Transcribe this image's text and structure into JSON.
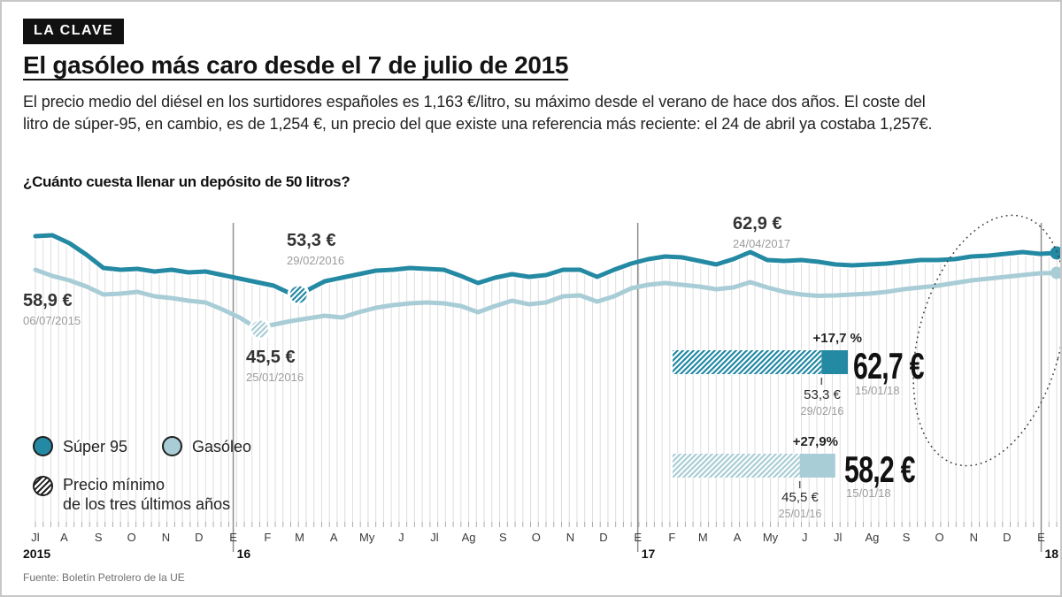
{
  "badge": "LA CLAVE",
  "title": "El gasóleo más caro desde el 7 de julio de 2015",
  "intro_lines": [
    "El precio medio del diésel en los surtidores españoles es 1,163 €/litro, su máximo desde el verano de hace dos años. El coste del",
    "litro de súper-95, en cambio, es de 1,254 €, un precio del que existe una referencia más reciente: el 24 de abril ya costaba 1,257€."
  ],
  "question": "¿Cuánto cuesta llenar un depósito de 50 litros?",
  "source": "Fuente: Boletín Petrolero de la UE",
  "legend": {
    "super95": "Súper 95",
    "gasoleo": "Gasóleo",
    "min_line1": "Precio mínimo",
    "min_line2": "de los tres últimos años"
  },
  "colors": {
    "super95": "#2489a3",
    "gasoleo": "#a9cdd6",
    "grid": "#dedede",
    "tick": "#ababab",
    "year_line": "#8f8f8f",
    "ink": "#1f1f1f",
    "date_gray": "#9c9c9c"
  },
  "chart_data": {
    "type": "line",
    "title": "¿Cuánto cuesta llenar un depósito de 50 litros?",
    "unit": "€ por depósito de 50 litros",
    "x_range": [
      "06/07/2015",
      "15/01/2018"
    ],
    "ylim": [
      44,
      68
    ],
    "grid": "weekly vertical drop lines",
    "legend_position": "bottom-left",
    "x_months": [
      "Jl",
      "A",
      "S",
      "O",
      "N",
      "D",
      "E",
      "F",
      "M",
      "A",
      "My",
      "J",
      "Jl",
      "Ag",
      "S",
      "O",
      "N",
      "D",
      "E",
      "F",
      "M",
      "A",
      "My",
      "J",
      "Jl",
      "Ag",
      "S",
      "O",
      "N",
      "D",
      "E"
    ],
    "years": [
      "2015",
      "16",
      "17",
      "18"
    ],
    "series": [
      {
        "name": "Súper 95",
        "values": [
          66.5,
          66.7,
          64.9,
          62.3,
          59.3,
          58.9,
          59.1,
          58.5,
          58.9,
          58.3,
          58.5,
          57.7,
          56.9,
          56.1,
          55.3,
          53.5,
          54.3,
          56.3,
          57.1,
          57.9,
          58.7,
          58.9,
          59.3,
          59.1,
          58.9,
          57.5,
          55.9,
          57.1,
          57.9,
          57.3,
          57.7,
          58.9,
          58.9,
          57.3,
          58.9,
          60.3,
          61.3,
          61.9,
          61.7,
          60.9,
          60.1,
          61.3,
          62.9,
          61.1,
          60.9,
          61.1,
          60.7,
          60.1,
          59.9,
          60.1,
          60.3,
          60.7,
          61.1,
          61.1,
          61.3,
          61.9,
          62.1,
          62.5,
          62.9,
          62.5,
          62.7
        ]
      },
      {
        "name": "Gasóleo",
        "values": [
          58.9,
          57.5,
          56.5,
          55.1,
          53.3,
          53.5,
          53.9,
          52.9,
          52.5,
          51.9,
          51.5,
          49.9,
          48.1,
          45.7,
          46.5,
          47.3,
          47.9,
          48.5,
          48.1,
          49.3,
          50.3,
          50.9,
          51.3,
          51.5,
          51.3,
          50.7,
          49.3,
          50.7,
          51.9,
          51.1,
          51.5,
          52.9,
          53.1,
          51.7,
          52.9,
          54.7,
          55.5,
          55.9,
          55.5,
          55.1,
          54.5,
          54.9,
          56.1,
          54.9,
          53.9,
          53.3,
          53.0,
          53.1,
          53.3,
          53.5,
          53.9,
          54.5,
          54.9,
          55.3,
          55.9,
          56.5,
          56.9,
          57.3,
          57.7,
          58.1,
          58.2
        ]
      }
    ],
    "annotations": [
      {
        "value": "58,9 €",
        "date": "06/07/2015",
        "series": "Gasóleo",
        "kind": "start"
      },
      {
        "value": "53,3 €",
        "date": "29/02/2016",
        "series": "Súper 95",
        "kind": "min",
        "v": 53.3,
        "day": 238
      },
      {
        "value": "45,5 €",
        "date": "25/01/2016",
        "series": "Gasóleo",
        "kind": "min",
        "v": 45.5,
        "day": 203
      },
      {
        "value": "62,9 €",
        "date": "24/04/2017",
        "series": "Súper 95",
        "kind": "peak"
      }
    ],
    "end_points": [
      {
        "series": "Súper 95",
        "value": 62.7
      },
      {
        "series": "Gasóleo",
        "value": 58.2
      }
    ],
    "bars": [
      {
        "series": "Súper 95",
        "old_value": 53.3,
        "old_value_label": "53,3 €",
        "old_date": "29/02/16",
        "current_value": 62.7,
        "current_label": "62,7 €",
        "current_date": "15/01/18",
        "change": "+17,7 %"
      },
      {
        "series": "Gasóleo",
        "old_value": 45.5,
        "old_value_label": "45,5 €",
        "old_date": "25/01/16",
        "current_value": 58.2,
        "current_label": "58,2 €",
        "current_date": "15/01/18",
        "change": "+27,9%"
      }
    ]
  }
}
